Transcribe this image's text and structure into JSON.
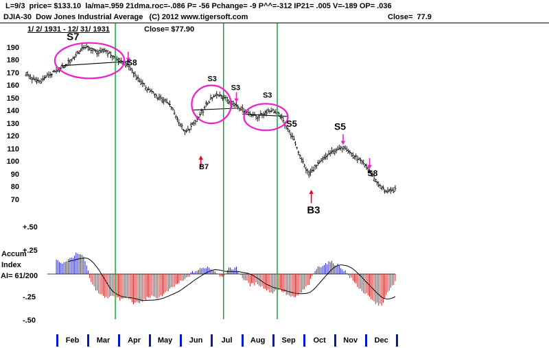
{
  "header": {
    "line1": "L=9/3  price= $133.10  la/ma=.959 21dma.roc=-.086 P= -56 Pchange= -9 P^^=-312 IP21= .005 V=-189 OP= .036",
    "line2_left": "DJIA-30  Dow Jones Industrial Average   (C) 2012 www.tigersoft.com",
    "line2_close": "Close=  77.9",
    "line3_range": "1/ 2/ 1931 - 12/ 31/ 1931",
    "line3_close": "Close= $77.90"
  },
  "accum_panel": {
    "line1": "Accum",
    "line2": "Index",
    "line3": "AI= 61/200"
  },
  "chart_data": {
    "type": "ohlc+histogram",
    "title": "DJIA-30 Dow Jones Industrial Average, 1/2/1931 - 12/31/1931",
    "close": 77.9,
    "months": [
      "Feb",
      "Mar",
      "Apr",
      "May",
      "Jun",
      "Jul",
      "Aug",
      "Sep",
      "Oct",
      "Nov",
      "Dec"
    ],
    "green_line_days": [
      59,
      130.5,
      166
    ],
    "price": {
      "ylim": [
        70,
        195
      ],
      "y_ticks": [
        190,
        180,
        170,
        160,
        150,
        140,
        130,
        120,
        110,
        100,
        90,
        80,
        70
      ],
      "anchors": [
        169.5,
        165,
        163.5,
        168.5,
        171,
        174,
        179,
        185,
        191,
        189,
        186,
        188,
        183,
        179,
        177,
        169,
        162,
        157,
        152,
        149,
        144,
        133,
        123,
        129,
        136,
        146,
        152,
        153,
        148,
        145,
        141,
        138,
        135.5,
        139,
        141,
        137,
        128,
        117,
        103,
        90,
        96,
        102,
        107,
        110,
        112,
        106,
        102,
        96,
        88,
        80,
        76.5,
        78
      ],
      "trendlines": [
        {
          "d1": 23,
          "p1": 176,
          "d2": 69,
          "p2": 179.5
        },
        {
          "d1": 110,
          "p1": 141,
          "d2": 140,
          "p2": 142.5
        },
        {
          "d1": 143,
          "p1": 137.8,
          "d2": 173,
          "p2": 136
        }
      ],
      "ellipses": [
        {
          "day": 42,
          "price": 180,
          "rd": 23,
          "rp": 14
        },
        {
          "day": 122.5,
          "price": 145.5,
          "rd": 13,
          "rp": 15
        },
        {
          "day": 158.5,
          "price": 135.5,
          "rd": 14.5,
          "rp": 10.5
        }
      ],
      "signals": [
        {
          "label": "S7",
          "day": 31,
          "price": 198.5,
          "size": 15
        },
        {
          "label": "S8",
          "day": 70,
          "price": 178.5,
          "size": 12
        },
        {
          "label": "S3",
          "day": 123,
          "price": 166,
          "size": 11
        },
        {
          "label": "S3",
          "day": 138.5,
          "price": 159,
          "size": 11
        },
        {
          "label": "S3",
          "day": 159.5,
          "price": 153,
          "size": 11
        },
        {
          "label": "S5",
          "day": 175.5,
          "price": 130,
          "size": 13
        },
        {
          "label": "S5",
          "day": 207.5,
          "price": 127.5,
          "size": 14
        },
        {
          "label": "S8",
          "day": 229,
          "price": 91,
          "size": 12
        },
        {
          "label": "B7",
          "day": 117.5,
          "price": 96.5,
          "size": 11
        },
        {
          "label": "B3",
          "day": 190,
          "price": 61.5,
          "size": 15
        }
      ],
      "arrows": [
        {
          "day": 67.5,
          "from": 187,
          "to": 179.5,
          "color": "magenta"
        },
        {
          "day": 139,
          "from": 155,
          "to": 147.5,
          "color": "magenta"
        },
        {
          "day": 209.5,
          "from": 122,
          "to": 114,
          "color": "magenta"
        },
        {
          "day": 227,
          "from": 103,
          "to": 95,
          "color": "magenta"
        },
        {
          "day": 115.5,
          "from": 96,
          "to": 104.5,
          "color": "red"
        },
        {
          "day": 188.5,
          "from": 67.5,
          "to": 77.5,
          "color": "red"
        }
      ]
    },
    "accum": {
      "ylim": [
        -0.5,
        0.5
      ],
      "ticks": [
        {
          "label": "+.50",
          "v": 0.5
        },
        {
          "label": "+.25",
          "v": 0.25
        },
        {
          "label": "-.25",
          "v": -0.25
        },
        {
          "label": "-.50",
          "v": -0.5
        }
      ],
      "anchors": [
        0.08,
        0.12,
        0.06,
        0.1,
        0.15,
        0.12,
        0.16,
        0.22,
        0.18,
        -0.1,
        -0.2,
        -0.26,
        -0.22,
        -0.28,
        -0.25,
        -0.32,
        -0.3,
        -0.24,
        -0.26,
        -0.22,
        -0.16,
        -0.1,
        -0.06,
        0.02,
        0.05,
        0.08,
        0.04,
        -0.03,
        0.05,
        0.07,
        -0.05,
        -0.12,
        -0.1,
        -0.16,
        -0.2,
        -0.16,
        -0.22,
        -0.26,
        -0.2,
        -0.12,
        0.05,
        0.1,
        0.13,
        0.1,
        0.04,
        -0.06,
        -0.15,
        -0.22,
        -0.3,
        -0.34,
        -0.2,
        -0.08
      ]
    },
    "colors": {
      "bar": "#000000",
      "accum_pos": "#2020cc",
      "accum_neg": "#cc2020",
      "green_line": "#00a12f",
      "ellipse": "#ee22cc",
      "signal_red": "#e8001c",
      "month_sep": "#0016c8"
    }
  }
}
